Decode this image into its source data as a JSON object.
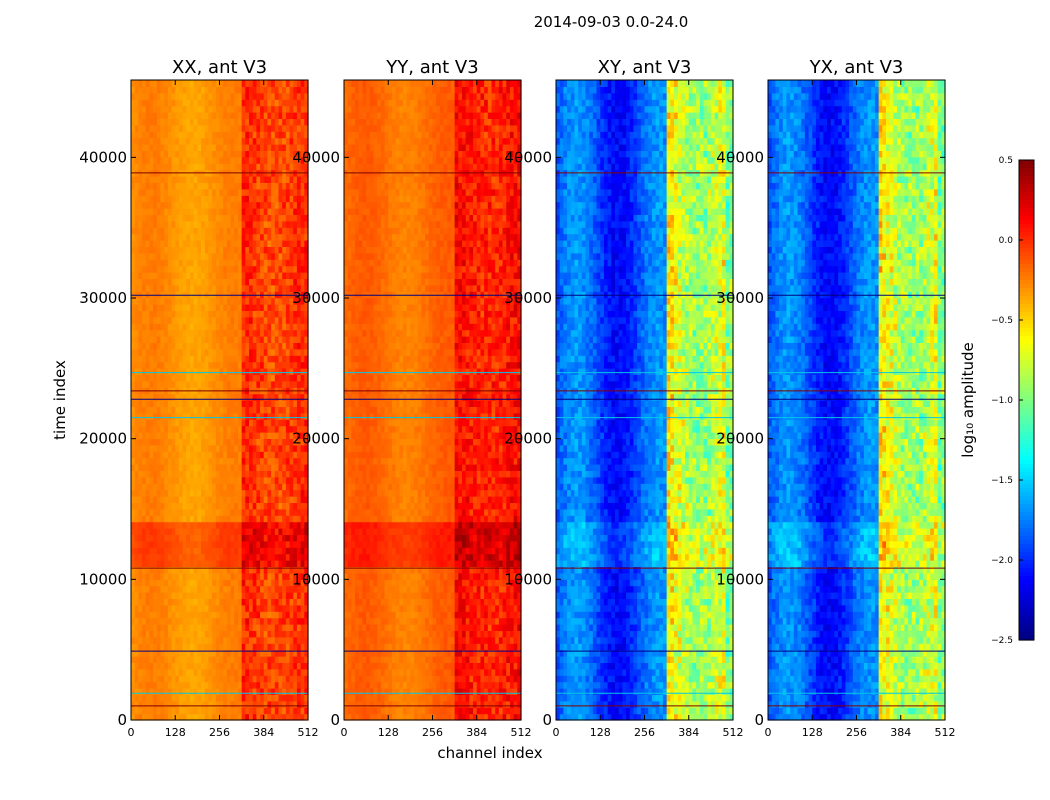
{
  "figure": {
    "suptitle": "2014-09-03 0.0-24.0"
  },
  "chart_data": {
    "type": "heatmap",
    "title": "2014-09-03 0.0-24.0",
    "xlabel": "channel index",
    "ylabel": "time index",
    "colorbar_label": "log₁₀ amplitude",
    "colormap": "jet",
    "x_ticks": [
      "0",
      "128",
      "256",
      "384",
      "512"
    ],
    "y_ticks": [
      "0",
      "10000",
      "20000",
      "30000",
      "40000"
    ],
    "xlim": [
      0,
      512
    ],
    "ylim": [
      0,
      45500
    ],
    "clim": [
      -2.5,
      0.5
    ],
    "colorbar_ticks": [
      "0.5",
      "0.0",
      "−0.5",
      "−1.0",
      "−1.5",
      "−2.0",
      "−2.5"
    ],
    "colorbar_values": [
      0.5,
      0.0,
      -0.5,
      -1.0,
      -1.5,
      -2.0,
      -2.5
    ],
    "panels": [
      {
        "title": "XX, ant V3",
        "pol": "XX",
        "base_level": -0.3
      },
      {
        "title": "YY, ant V3",
        "pol": "YY",
        "base_level": -0.2
      },
      {
        "title": "XY, ant V3",
        "pol": "XY",
        "base_level": -1.9
      },
      {
        "title": "YX, ant V3",
        "pol": "YX",
        "base_level": -1.9
      }
    ],
    "features": {
      "rfi_channel_range": [
        325,
        512
      ],
      "bright_time_band": [
        10900,
        14200
      ],
      "flagged_rows": [
        1000,
        1900,
        4900,
        10800,
        21500,
        22800,
        23400,
        24700,
        30200,
        38900
      ]
    }
  }
}
